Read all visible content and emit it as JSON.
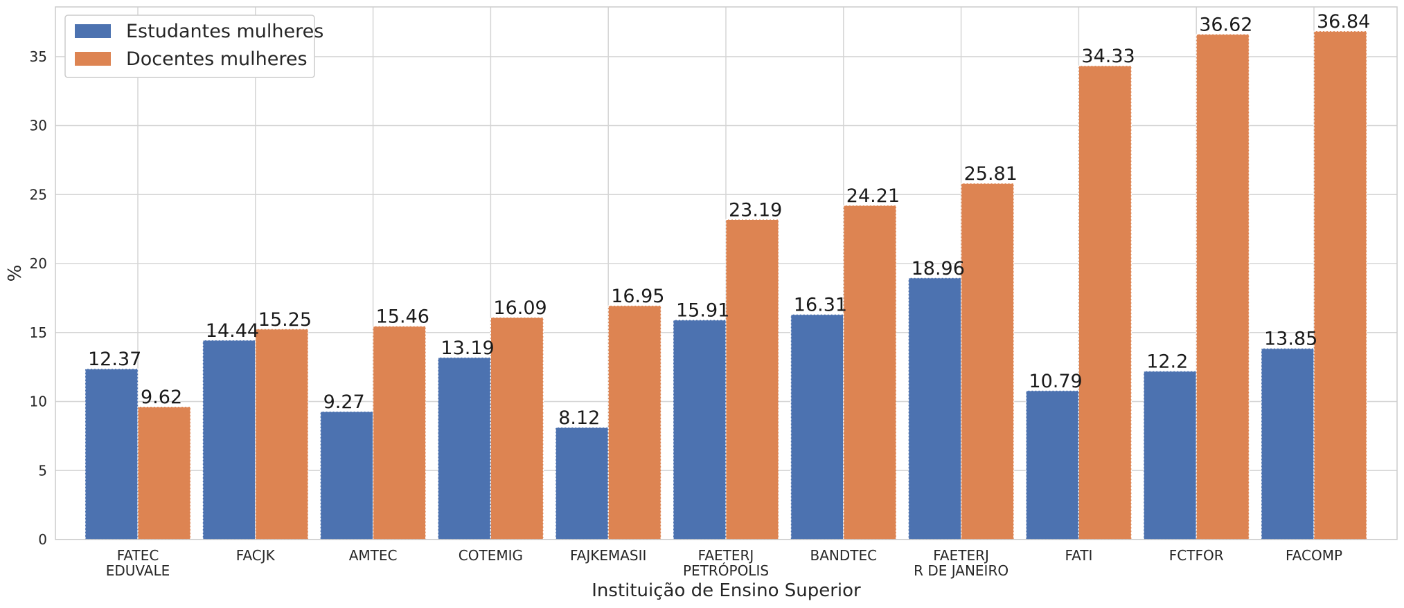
{
  "chart_data": {
    "type": "bar",
    "title": "",
    "xlabel": "Instituição de Ensino Superior",
    "ylabel": "%",
    "ylim": [
      0,
      38.6
    ],
    "yticks": [
      0,
      5,
      10,
      15,
      20,
      25,
      30,
      35
    ],
    "grid": true,
    "legend_position": "top-left",
    "categories": [
      [
        "FATEC",
        "EDUVALE"
      ],
      [
        "FACJK"
      ],
      [
        "AMTEC"
      ],
      [
        "COTEMIG"
      ],
      [
        "FAJKEMASII"
      ],
      [
        "FAETERJ",
        "PETRÓPOLIS"
      ],
      [
        "BANDTEC"
      ],
      [
        "FAETERJ",
        "R DE JANEIRO"
      ],
      [
        "FATI"
      ],
      [
        "FCTFOR"
      ],
      [
        "FACOMP"
      ]
    ],
    "series": [
      {
        "name": "Estudantes mulheres",
        "color": "#4c72b0",
        "values": [
          12.37,
          14.44,
          9.27,
          13.19,
          8.12,
          15.91,
          16.31,
          18.96,
          10.79,
          12.2,
          13.85
        ],
        "labels": [
          "12.37",
          "14.44",
          "9.27",
          "13.19",
          "8.12",
          "15.91",
          "16.31",
          "18.96",
          "10.79",
          "12.2",
          "13.85"
        ]
      },
      {
        "name": "Docentes mulheres",
        "color": "#dd8452",
        "values": [
          9.62,
          15.25,
          15.46,
          16.09,
          16.95,
          23.19,
          24.21,
          25.81,
          34.33,
          36.62,
          36.84
        ],
        "labels": [
          "9.62",
          "15.25",
          "15.46",
          "16.09",
          "16.95",
          "23.19",
          "24.21",
          "25.81",
          "34.33",
          "36.62",
          "36.84"
        ]
      }
    ]
  }
}
